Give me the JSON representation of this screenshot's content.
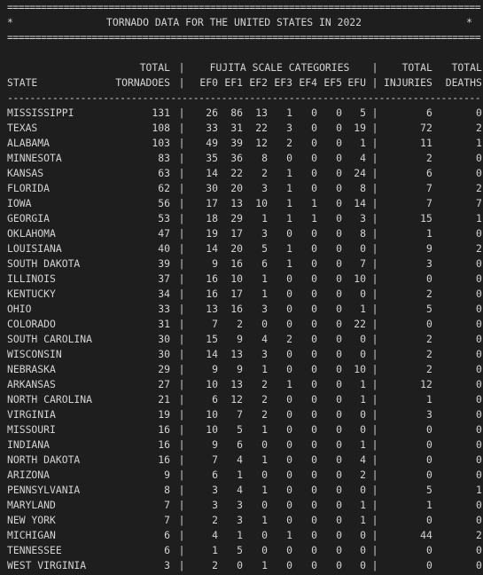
{
  "title": "TORNADO DATA FOR THE UNITED STATES IN 2022",
  "border_char": "=",
  "star": "*",
  "dash_rule": "-",
  "header": {
    "total_top": "TOTAL",
    "fujita_top": "FUJITA SCALE CATEGORIES",
    "injuries_top": "TOTAL",
    "deaths_top": "TOTAL",
    "state": "STATE",
    "tornadoes": "TORNADOES",
    "ef": [
      "EF0",
      "EF1",
      "EF2",
      "EF3",
      "EF4",
      "EF5",
      "EFU"
    ],
    "injuries": "INJURIES",
    "deaths": "DEATHS",
    "sep": "|"
  },
  "rows": [
    {
      "state": "MISSISSIPPI",
      "total": "131",
      "ef": [
        "26",
        "86",
        "13",
        "1",
        "0",
        "0",
        "5"
      ],
      "injuries": "6",
      "deaths": "0"
    },
    {
      "state": "TEXAS",
      "total": "108",
      "ef": [
        "33",
        "31",
        "22",
        "3",
        "0",
        "0",
        "19"
      ],
      "injuries": "72",
      "deaths": "2"
    },
    {
      "state": "ALABAMA",
      "total": "103",
      "ef": [
        "49",
        "39",
        "12",
        "2",
        "0",
        "0",
        "1"
      ],
      "injuries": "11",
      "deaths": "1"
    },
    {
      "state": "MINNESOTA",
      "total": "83",
      "ef": [
        "35",
        "36",
        "8",
        "0",
        "0",
        "0",
        "4"
      ],
      "injuries": "2",
      "deaths": "0"
    },
    {
      "state": "KANSAS",
      "total": "63",
      "ef": [
        "14",
        "22",
        "2",
        "1",
        "0",
        "0",
        "24"
      ],
      "injuries": "6",
      "deaths": "0"
    },
    {
      "state": "FLORIDA",
      "total": "62",
      "ef": [
        "30",
        "20",
        "3",
        "1",
        "0",
        "0",
        "8"
      ],
      "injuries": "7",
      "deaths": "2"
    },
    {
      "state": "IOWA",
      "total": "56",
      "ef": [
        "17",
        "13",
        "10",
        "1",
        "1",
        "0",
        "14"
      ],
      "injuries": "7",
      "deaths": "7"
    },
    {
      "state": "GEORGIA",
      "total": "53",
      "ef": [
        "18",
        "29",
        "1",
        "1",
        "1",
        "0",
        "3"
      ],
      "injuries": "15",
      "deaths": "1"
    },
    {
      "state": "OKLAHOMA",
      "total": "47",
      "ef": [
        "19",
        "17",
        "3",
        "0",
        "0",
        "0",
        "8"
      ],
      "injuries": "1",
      "deaths": "0"
    },
    {
      "state": "LOUISIANA",
      "total": "40",
      "ef": [
        "14",
        "20",
        "5",
        "1",
        "0",
        "0",
        "0"
      ],
      "injuries": "9",
      "deaths": "2"
    },
    {
      "state": "SOUTH DAKOTA",
      "total": "39",
      "ef": [
        "9",
        "16",
        "6",
        "1",
        "0",
        "0",
        "7"
      ],
      "injuries": "3",
      "deaths": "0"
    },
    {
      "state": "ILLINOIS",
      "total": "37",
      "ef": [
        "16",
        "10",
        "1",
        "0",
        "0",
        "0",
        "10"
      ],
      "injuries": "0",
      "deaths": "0"
    },
    {
      "state": "KENTUCKY",
      "total": "34",
      "ef": [
        "16",
        "17",
        "1",
        "0",
        "0",
        "0",
        "0"
      ],
      "injuries": "2",
      "deaths": "0"
    },
    {
      "state": "OHIO",
      "total": "33",
      "ef": [
        "13",
        "16",
        "3",
        "0",
        "0",
        "0",
        "1"
      ],
      "injuries": "5",
      "deaths": "0"
    },
    {
      "state": "COLORADO",
      "total": "31",
      "ef": [
        "7",
        "2",
        "0",
        "0",
        "0",
        "0",
        "22"
      ],
      "injuries": "0",
      "deaths": "0"
    },
    {
      "state": "SOUTH CAROLINA",
      "total": "30",
      "ef": [
        "15",
        "9",
        "4",
        "2",
        "0",
        "0",
        "0"
      ],
      "injuries": "2",
      "deaths": "0"
    },
    {
      "state": "WISCONSIN",
      "total": "30",
      "ef": [
        "14",
        "13",
        "3",
        "0",
        "0",
        "0",
        "0"
      ],
      "injuries": "2",
      "deaths": "0"
    },
    {
      "state": "NEBRASKA",
      "total": "29",
      "ef": [
        "9",
        "9",
        "1",
        "0",
        "0",
        "0",
        "10"
      ],
      "injuries": "2",
      "deaths": "0"
    },
    {
      "state": "ARKANSAS",
      "total": "27",
      "ef": [
        "10",
        "13",
        "2",
        "1",
        "0",
        "0",
        "1"
      ],
      "injuries": "12",
      "deaths": "0"
    },
    {
      "state": "NORTH CAROLINA",
      "total": "21",
      "ef": [
        "6",
        "12",
        "2",
        "0",
        "0",
        "0",
        "1"
      ],
      "injuries": "1",
      "deaths": "0"
    },
    {
      "state": "VIRGINIA",
      "total": "19",
      "ef": [
        "10",
        "7",
        "2",
        "0",
        "0",
        "0",
        "0"
      ],
      "injuries": "3",
      "deaths": "0"
    },
    {
      "state": "MISSOURI",
      "total": "16",
      "ef": [
        "10",
        "5",
        "1",
        "0",
        "0",
        "0",
        "0"
      ],
      "injuries": "0",
      "deaths": "0"
    },
    {
      "state": "INDIANA",
      "total": "16",
      "ef": [
        "9",
        "6",
        "0",
        "0",
        "0",
        "0",
        "1"
      ],
      "injuries": "0",
      "deaths": "0"
    },
    {
      "state": "NORTH DAKOTA",
      "total": "16",
      "ef": [
        "7",
        "4",
        "1",
        "0",
        "0",
        "0",
        "4"
      ],
      "injuries": "0",
      "deaths": "0"
    },
    {
      "state": "ARIZONA",
      "total": "9",
      "ef": [
        "6",
        "1",
        "0",
        "0",
        "0",
        "0",
        "2"
      ],
      "injuries": "0",
      "deaths": "0"
    },
    {
      "state": "PENNSYLVANIA",
      "total": "8",
      "ef": [
        "3",
        "4",
        "1",
        "0",
        "0",
        "0",
        "0"
      ],
      "injuries": "5",
      "deaths": "1"
    },
    {
      "state": "MARYLAND",
      "total": "7",
      "ef": [
        "3",
        "3",
        "0",
        "0",
        "0",
        "0",
        "1"
      ],
      "injuries": "1",
      "deaths": "0"
    },
    {
      "state": "NEW YORK",
      "total": "7",
      "ef": [
        "2",
        "3",
        "1",
        "0",
        "0",
        "0",
        "1"
      ],
      "injuries": "0",
      "deaths": "0"
    },
    {
      "state": "MICHIGAN",
      "total": "6",
      "ef": [
        "4",
        "1",
        "0",
        "1",
        "0",
        "0",
        "0"
      ],
      "injuries": "44",
      "deaths": "2"
    },
    {
      "state": "TENNESSEE",
      "total": "6",
      "ef": [
        "1",
        "5",
        "0",
        "0",
        "0",
        "0",
        "0"
      ],
      "injuries": "0",
      "deaths": "0"
    },
    {
      "state": "WEST VIRGINIA",
      "total": "3",
      "ef": [
        "2",
        "0",
        "1",
        "0",
        "0",
        "0",
        "0"
      ],
      "injuries": "0",
      "deaths": "0"
    }
  ]
}
